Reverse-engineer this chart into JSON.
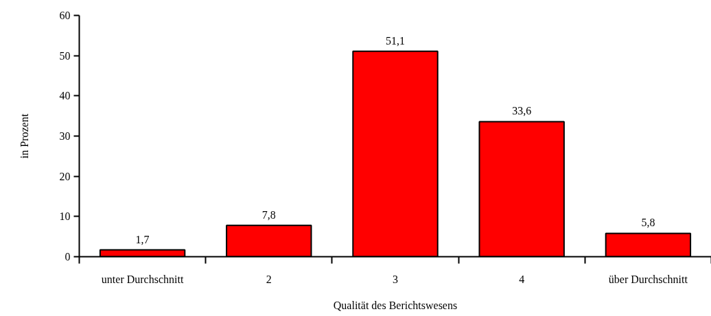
{
  "chart_data": {
    "type": "bar",
    "xlabel": "Qualität des Berichtswesens",
    "ylabel": "in Prozent",
    "categories": [
      "unter Durchschnitt",
      "2",
      "3",
      "4",
      "über Durchschnitt"
    ],
    "values": [
      1.7,
      7.8,
      51.1,
      33.6,
      5.8
    ],
    "value_labels": [
      "1,7",
      "7,8",
      "51,1",
      "33,6",
      "5,8"
    ],
    "color": "#ff0000",
    "ylim": [
      0,
      60
    ],
    "yticks": [
      0,
      10,
      20,
      30,
      40,
      50,
      60
    ],
    "grid": false
  }
}
